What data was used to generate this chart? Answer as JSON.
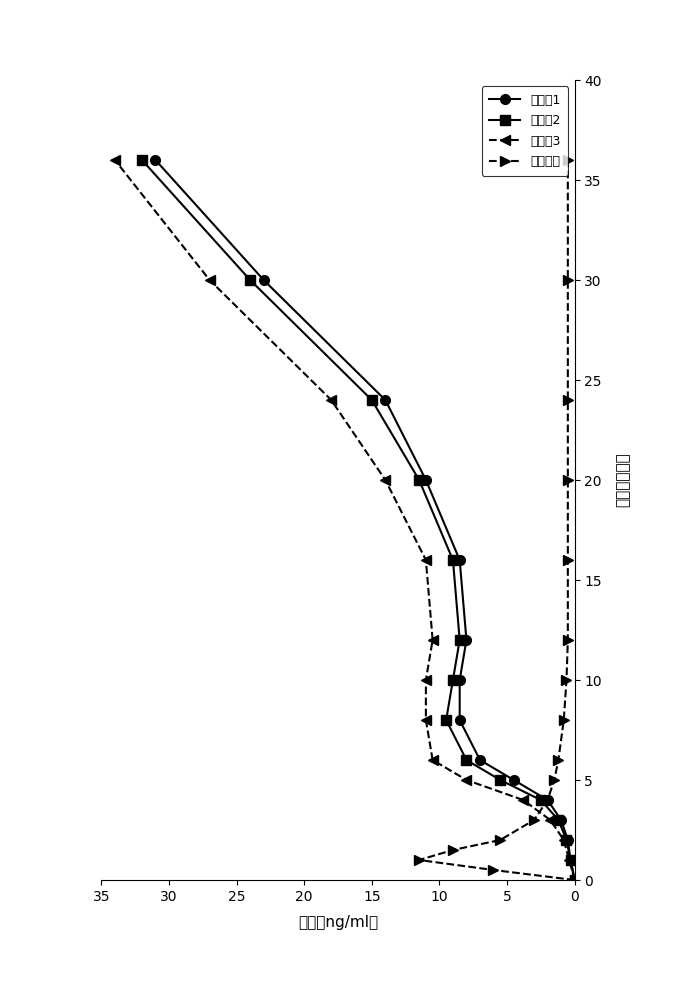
{
  "series": [
    {
      "label": "实施例1",
      "marker": "o",
      "linestyle": "-",
      "color": "#000000",
      "time": [
        0,
        1,
        2,
        3,
        4,
        5,
        6,
        8,
        10,
        12,
        16,
        20,
        24,
        30,
        36
      ],
      "conc": [
        0,
        0.3,
        0.5,
        1.0,
        2.0,
        4.5,
        7.0,
        8.5,
        8.5,
        8.0,
        8.5,
        11.0,
        14.0,
        23.0,
        31.0
      ]
    },
    {
      "label": "实施例2",
      "marker": "s",
      "linestyle": "-",
      "color": "#000000",
      "time": [
        0,
        1,
        2,
        3,
        4,
        5,
        6,
        8,
        10,
        12,
        16,
        20,
        24,
        30,
        36
      ],
      "conc": [
        0,
        0.3,
        0.6,
        1.2,
        2.5,
        5.5,
        8.0,
        9.5,
        9.0,
        8.5,
        9.0,
        11.5,
        15.0,
        24.0,
        32.0
      ]
    },
    {
      "label": "实施例3",
      "marker": "^",
      "linestyle": "--",
      "color": "#000000",
      "time": [
        0,
        1,
        2,
        3,
        4,
        5,
        6,
        8,
        10,
        12,
        16,
        20,
        24,
        30,
        36
      ],
      "conc": [
        0,
        0.4,
        0.8,
        1.8,
        3.8,
        8.0,
        10.5,
        11.0,
        11.0,
        10.5,
        11.0,
        14.0,
        18.0,
        27.0,
        34.0
      ]
    },
    {
      "label": "速释参照",
      "marker": "^",
      "linestyle": "--",
      "color": "#000000",
      "time": [
        0,
        0.5,
        1,
        1.5,
        2,
        3,
        4,
        5,
        6,
        8,
        10,
        12,
        16,
        20,
        24,
        30,
        36
      ],
      "conc": [
        0,
        6.0,
        11.5,
        9.0,
        5.5,
        3.0,
        2.0,
        1.5,
        1.2,
        0.8,
        0.6,
        0.5,
        0.5,
        0.5,
        0.5,
        0.5,
        0.5
      ]
    }
  ],
  "xlim_conc": [
    0,
    35
  ],
  "xlim_time": [
    0,
    40
  ],
  "xticks_conc": [
    0,
    5,
    10,
    15,
    20,
    25,
    30,
    35
  ],
  "yticks_time": [
    0,
    5,
    10,
    15,
    20,
    25,
    30,
    35,
    40
  ],
  "xlabel": "浓度（ng/ml）",
  "ylabel": "时间（小时）",
  "background_color": "#ffffff",
  "figsize": [
    6.76,
    10.0
  ],
  "dpi": 100
}
